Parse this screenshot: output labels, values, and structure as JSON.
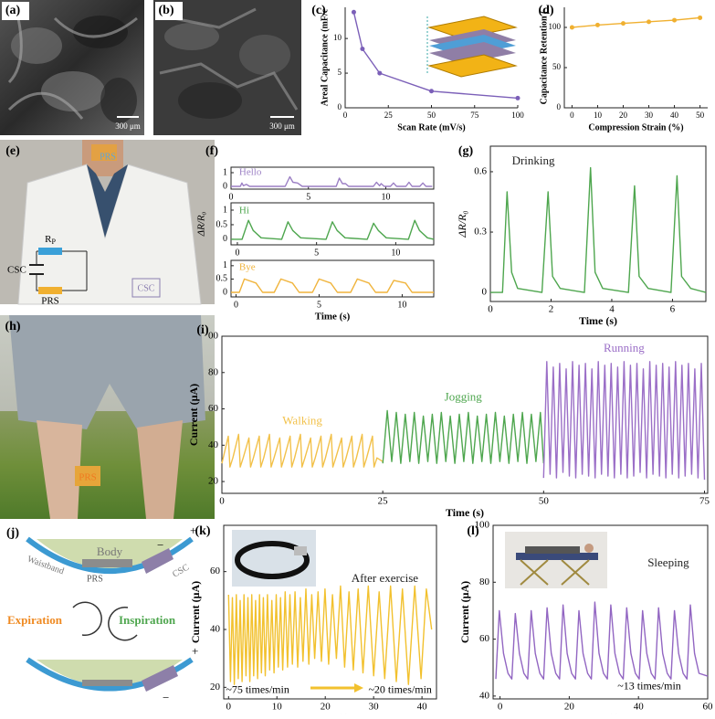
{
  "figure": {
    "panel_labels": [
      "(a)",
      "(b)",
      "(c)",
      "(d)",
      "(e)",
      "(f)",
      "(g)",
      "(h)",
      "(i)",
      "(j)",
      "(k)",
      "(l)"
    ],
    "a": {
      "scale_bar": "300 μm"
    },
    "b": {
      "scale_bar": "300 μm"
    },
    "e": {
      "neck_label": "PRS",
      "resistor": "R",
      "resistor_sub": "P",
      "capacitor": "CSC",
      "sensor": "PRS",
      "patch": "CSC"
    },
    "h": {
      "sensor": "PRS"
    },
    "j": {
      "body": "Body",
      "waistband": "Waistband",
      "sensor": "PRS",
      "capacitor": "CSC",
      "expiration": "Expiration",
      "inspiration": "Inspiration",
      "signs_top": [
        "+",
        "−"
      ],
      "signs_bottom": [
        "+",
        "−"
      ]
    }
  },
  "chart_data": [
    {
      "type": "line",
      "markers": true,
      "xlabel": "Scan Rate (mV/s)",
      "ylabel": "Areal Capacitance (mF/c",
      "xlim": [
        0,
        100
      ],
      "xticks": [
        0,
        25,
        50,
        75,
        100
      ],
      "ylim": [
        0,
        14.5
      ],
      "yticks": [
        0,
        5,
        10
      ],
      "series": [
        {
          "color": "#7b5fb8",
          "x": [
            5,
            10,
            20,
            50,
            100
          ],
          "values": [
            13.8,
            8.5,
            5.0,
            2.4,
            1.4
          ]
        }
      ]
    },
    {
      "type": "line",
      "markers": true,
      "xlabel": "Compression Strain (%)",
      "ylabel": "Capacitance Retention (",
      "xlim": [
        -3,
        53
      ],
      "xticks": [
        0,
        10,
        20,
        30,
        40,
        50
      ],
      "ylim": [
        0,
        125
      ],
      "yticks": [
        0,
        50,
        100
      ],
      "series": [
        {
          "color": "#f0b030",
          "x": [
            0,
            10,
            20,
            30,
            40,
            50
          ],
          "values": [
            100,
            103,
            105,
            107,
            109,
            112
          ]
        }
      ]
    },
    {
      "type": "line",
      "title": "Hello",
      "xlim": [
        0,
        13.1
      ],
      "xticks": [
        0,
        5,
        10
      ],
      "ylim": [
        -0.2,
        1.4
      ],
      "yticks": [
        0,
        1
      ],
      "series": [
        {
          "color": "#9b7fc4",
          "x": [
            0,
            0.6,
            0.7,
            0.8,
            1.0,
            1.2,
            3.5,
            3.8,
            4.0,
            4.3,
            4.6,
            6.8,
            7.0,
            7.2,
            7.4,
            7.6,
            9.2,
            9.4,
            9.6,
            9.7,
            9.9,
            10.3,
            10.5,
            10.7,
            11.3,
            11.5,
            11.7,
            12.2,
            12.4,
            12.6,
            13.0
          ],
          "values": [
            0,
            0,
            0.25,
            0.05,
            0.15,
            0,
            0,
            0.7,
            0.3,
            0.25,
            0,
            0,
            0.6,
            0.2,
            0.2,
            0,
            0,
            0.3,
            0.05,
            0.2,
            0,
            0,
            0.25,
            0,
            0,
            0.3,
            0,
            0,
            0.25,
            0,
            0
          ]
        }
      ]
    },
    {
      "type": "line",
      "title": "Hi",
      "ylabel": "ΔR/R₀",
      "xlim": [
        -0.4,
        12.4
      ],
      "xticks": [
        0,
        5,
        10
      ],
      "ylim": [
        -0.19,
        1.25
      ],
      "yticks": [
        0,
        0.5,
        1
      ],
      "series": [
        {
          "color": "#4ea64e",
          "x": [
            -0.4,
            0.3,
            0.7,
            1.0,
            1.5,
            2.8,
            3.2,
            3.5,
            4.0,
            5.6,
            6.0,
            6.3,
            6.8,
            8.2,
            8.6,
            8.9,
            9.4,
            10.8,
            11.2,
            11.5,
            12.0,
            12.4
          ],
          "values": [
            0,
            0,
            0.65,
            0.3,
            0.05,
            0,
            0.6,
            0.3,
            0.05,
            0,
            0.6,
            0.3,
            0.05,
            0,
            0.55,
            0.3,
            0.05,
            0,
            0.65,
            0.3,
            0.05,
            0
          ]
        }
      ]
    },
    {
      "type": "line",
      "title": "Bye",
      "xlabel": "Time (s)",
      "xlim": [
        -0.3,
        11.9
      ],
      "xticks": [
        0,
        5,
        10
      ],
      "ylim": [
        -0.17,
        1.2
      ],
      "yticks": [
        0,
        0.5,
        1
      ],
      "series": [
        {
          "color": "#f0b43c",
          "x": [
            -0.3,
            0.2,
            0.5,
            1.2,
            1.6,
            2.3,
            2.7,
            3.4,
            3.8,
            4.6,
            5.0,
            5.7,
            6.1,
            6.9,
            7.3,
            8.0,
            8.4,
            9.1,
            9.5,
            10.2,
            10.6,
            11.9
          ],
          "values": [
            0,
            0,
            0.5,
            0.35,
            0,
            0,
            0.5,
            0.35,
            0,
            0,
            0.5,
            0.35,
            0,
            0,
            0.5,
            0.35,
            0,
            0,
            0.45,
            0.35,
            0,
            0
          ]
        }
      ]
    },
    {
      "type": "line",
      "title": "Drinking",
      "xlabel": "Time (s)",
      "ylabel": "ΔR/R₀",
      "xlim": [
        0,
        7.1
      ],
      "xticks": [
        0,
        2,
        4,
        6
      ],
      "ylim": [
        -0.045,
        0.727
      ],
      "yticks": [
        0,
        0.3,
        0.6
      ],
      "series": [
        {
          "color": "#4ea64e",
          "x": [
            0,
            0.4,
            0.55,
            0.7,
            0.9,
            1.7,
            1.9,
            2.05,
            2.3,
            3.1,
            3.3,
            3.45,
            3.7,
            4.55,
            4.75,
            4.9,
            5.2,
            5.95,
            6.15,
            6.3,
            6.6,
            7.1
          ],
          "values": [
            0,
            0,
            0.5,
            0.1,
            0.02,
            0,
            0.5,
            0.08,
            0.02,
            0,
            0.62,
            0.1,
            0.02,
            0,
            0.53,
            0.08,
            0.02,
            0,
            0.58,
            0.08,
            0.02,
            0
          ]
        }
      ]
    },
    {
      "type": "line",
      "xlabel": "Time (s)",
      "ylabel": "Current (μA)",
      "xlim": [
        0,
        75.5
      ],
      "xticks": [
        0,
        25,
        50,
        75
      ],
      "ylim": [
        13.5,
        100
      ],
      "yticks": [
        20,
        40,
        60,
        80,
        {
          "value": 100,
          "label": "00"
        }
      ],
      "series": [
        {
          "name": "Walking",
          "color": "#f2c14a",
          "x": [
            0,
            1.0,
            1.25,
            1.7,
            2.6,
            2.85,
            3.3,
            4.2,
            4.45,
            4.9,
            5.8,
            6.05,
            6.5,
            7.4,
            7.65,
            8.1,
            9.0,
            9.25,
            9.7,
            10.6,
            10.85,
            11.3,
            12.2,
            12.45,
            12.9,
            13.8,
            14.05,
            14.5,
            15.4,
            15.65,
            16.1,
            17.0,
            17.25,
            17.7,
            18.6,
            18.85,
            19.3,
            20.2,
            20.45,
            20.9,
            21.8,
            22.05,
            22.5,
            23.4,
            23.65,
            24.1,
            25
          ],
          "values": [
            30,
            45,
            28,
            33,
            46,
            28,
            33,
            44,
            28,
            33,
            45,
            28,
            33,
            46,
            28,
            33,
            44,
            28,
            33,
            45,
            28,
            33,
            46,
            28,
            33,
            44,
            28,
            33,
            45,
            28,
            33,
            46,
            28,
            33,
            44,
            28,
            33,
            45,
            28,
            33,
            46,
            28,
            33,
            45,
            28,
            33,
            31
          ]
        },
        {
          "name": "Jogging",
          "color": "#4ea64e",
          "x": [
            25,
            25.7,
            26.4,
            27.1,
            27.8,
            28.5,
            29.2,
            29.9,
            30.6,
            31.3,
            32,
            32.7,
            33.4,
            34.1,
            34.8,
            35.5,
            36.2,
            36.9,
            37.6,
            38.3,
            39,
            39.7,
            40.4,
            41.1,
            41.8,
            42.5,
            43.2,
            43.9,
            44.6,
            45.3,
            46,
            46.7,
            47.4,
            48.1,
            48.8,
            49.5,
            50
          ],
          "values": [
            30,
            59,
            31,
            58,
            30,
            57,
            31,
            58,
            30,
            56,
            31,
            57,
            30,
            58,
            31,
            56,
            30,
            57,
            31,
            58,
            30,
            56,
            31,
            57,
            30,
            58,
            31,
            56,
            30,
            57,
            31,
            58,
            30,
            57,
            31,
            58,
            30
          ]
        },
        {
          "name": "Running",
          "color": "#9b6fc7",
          "x": [
            50,
            50.5,
            51,
            51.5,
            52,
            52.5,
            53,
            53.5,
            54,
            54.5,
            55,
            55.5,
            56,
            56.5,
            57,
            57.5,
            58,
            58.5,
            59,
            59.5,
            60,
            60.5,
            61,
            61.5,
            62,
            62.5,
            63,
            63.5,
            64,
            64.5,
            65,
            65.5,
            66,
            66.5,
            67,
            67.5,
            68,
            68.5,
            69,
            69.5,
            70,
            70.5,
            71,
            71.5,
            72,
            72.5,
            73,
            73.5,
            74,
            74.5,
            75
          ],
          "values": [
            22,
            86,
            24,
            83,
            22,
            85,
            25,
            82,
            23,
            86,
            22,
            84,
            24,
            85,
            23,
            82,
            22,
            86,
            24,
            84,
            23,
            85,
            22,
            83,
            24,
            86,
            22,
            84,
            23,
            85,
            25,
            82,
            22,
            86,
            24,
            84,
            23,
            85,
            22,
            83,
            24,
            86,
            22,
            84,
            23,
            85,
            24,
            82,
            22,
            85,
            21
          ]
        }
      ]
    },
    {
      "type": "line",
      "title": "After exercise",
      "annotations": [
        "~75 times/min",
        "~20 times/min"
      ],
      "xlabel": "Time (s)",
      "ylabel": "Current (μA)",
      "xlim": [
        -1,
        43
      ],
      "xticks": [
        0,
        10,
        20,
        30,
        40
      ],
      "ylim": [
        16,
        76
      ],
      "yticks": [
        20,
        40,
        60
      ],
      "series": [
        {
          "color": "#f2c12e",
          "x": [
            0,
            0.4,
            0.8,
            1.2,
            1.6,
            2.0,
            2.4,
            2.8,
            3.2,
            3.6,
            4.0,
            4.4,
            4.8,
            5.2,
            5.6,
            6.0,
            6.4,
            6.8,
            7.2,
            7.6,
            8.05,
            8.5,
            8.95,
            9.4,
            9.85,
            10.3,
            10.75,
            11.2,
            11.7,
            12.2,
            12.7,
            13.2,
            13.75,
            14.3,
            14.85,
            15.4,
            16.0,
            16.6,
            17.2,
            17.8,
            18.5,
            19.2,
            19.95,
            20.7,
            21.5,
            22.3,
            23.15,
            24.0,
            24.9,
            25.8,
            26.8,
            27.8,
            28.9,
            30.0,
            31.15,
            32.3,
            33.5,
            34.7,
            35.95,
            37.2,
            38.5,
            39.8,
            40.9,
            42
          ],
          "values": [
            52,
            22,
            51,
            21,
            52,
            23,
            50,
            22,
            52,
            24,
            51,
            22,
            52,
            24,
            50,
            23,
            52,
            25,
            51,
            24,
            52,
            26,
            50,
            25,
            52,
            27,
            51,
            26,
            53,
            27,
            52,
            28,
            53,
            27,
            51,
            29,
            54,
            28,
            52,
            30,
            53,
            29,
            54,
            28,
            52,
            30,
            55,
            27,
            53,
            26,
            54,
            25,
            55,
            24,
            53,
            23,
            55,
            22,
            54,
            21,
            55,
            23,
            54,
            40
          ]
        }
      ]
    },
    {
      "type": "line",
      "title": "Sleeping",
      "annotations": [
        "~13 times/min"
      ],
      "xlabel": "Time (s)",
      "ylabel": "Current (μA)",
      "xlim": [
        -2,
        60
      ],
      "xticks": [
        0,
        20,
        40,
        60
      ],
      "ylim": [
        39,
        100
      ],
      "yticks": [
        40,
        60,
        80,
        100
      ],
      "series": [
        {
          "color": "#9266c2",
          "x": [
            -1.2,
            -0.2,
            1.0,
            2.3,
            3.4,
            4.4,
            5.6,
            6.9,
            8.0,
            9.0,
            10.2,
            11.5,
            12.6,
            13.6,
            14.8,
            16.1,
            17.2,
            18.2,
            19.4,
            20.7,
            21.8,
            22.8,
            24.0,
            25.3,
            26.4,
            27.4,
            28.6,
            29.9,
            31.0,
            32.0,
            33.2,
            34.5,
            35.6,
            36.6,
            37.8,
            39.1,
            40.2,
            41.2,
            42.4,
            43.7,
            44.8,
            45.8,
            47.0,
            48.3,
            49.4,
            50.4,
            51.6,
            52.9,
            54.0,
            55.0,
            56.2,
            57.5,
            60
          ],
          "values": [
            46,
            70,
            55,
            48,
            46,
            69,
            55,
            48,
            46,
            70,
            55,
            48,
            46,
            71,
            55,
            48,
            46,
            72,
            55,
            48,
            46,
            70,
            55,
            48,
            46,
            73,
            55,
            48,
            46,
            72,
            55,
            48,
            46,
            71,
            55,
            48,
            46,
            70,
            55,
            48,
            46,
            71,
            55,
            48,
            46,
            70,
            55,
            48,
            46,
            72,
            55,
            48,
            47
          ]
        }
      ]
    }
  ]
}
